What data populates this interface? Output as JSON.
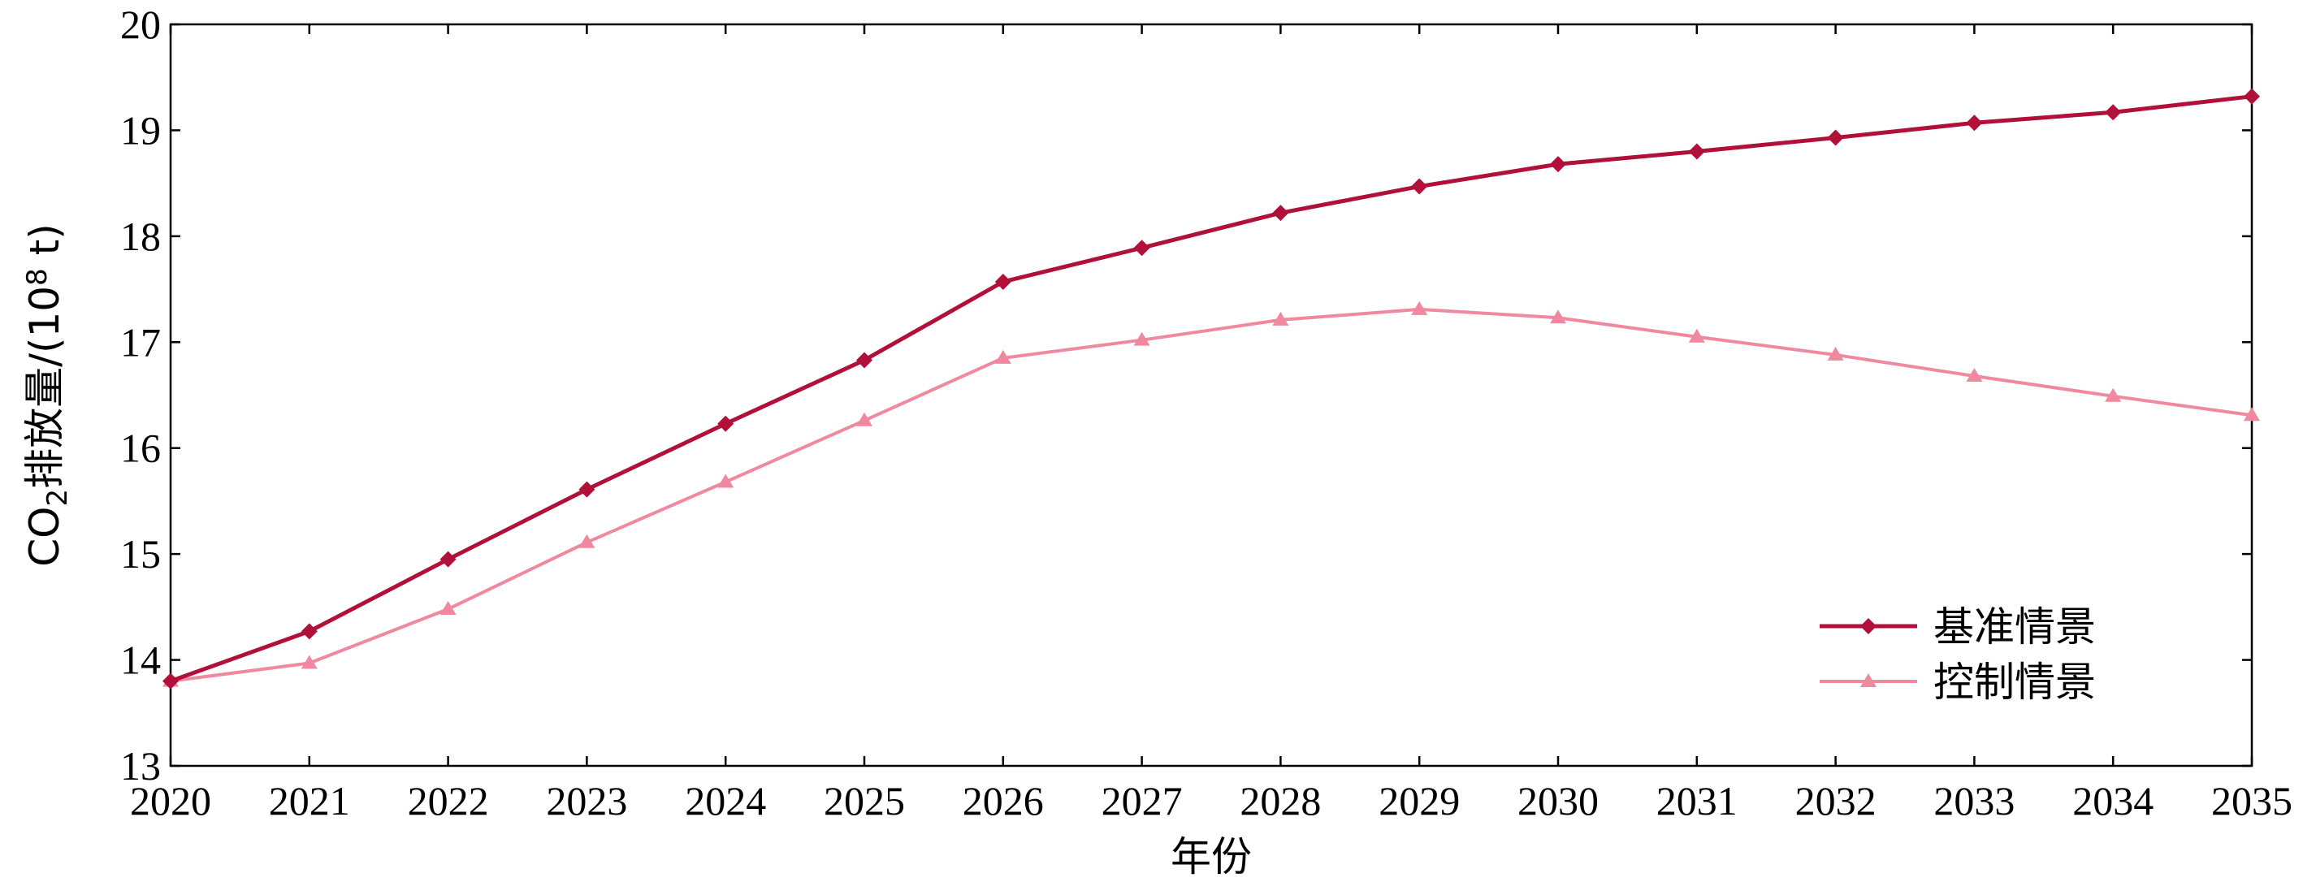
{
  "chart_data": {
    "type": "line",
    "xlabel": "年份",
    "ylabel": {
      "prefix": "CO",
      "subscript": "2",
      "middle": "排放量/(10",
      "superscript": "8",
      "suffix": " t)"
    },
    "ylim": [
      13,
      20
    ],
    "yticks": [
      "13",
      "14",
      "15",
      "16",
      "17",
      "18",
      "19",
      "20"
    ],
    "x": [
      "2020",
      "2021",
      "2022",
      "2023",
      "2024",
      "2025",
      "2026",
      "2027",
      "2028",
      "2029",
      "2030",
      "2031",
      "2032",
      "2033",
      "2034",
      "2035"
    ],
    "grid": false,
    "legend_position": "bottom-right",
    "series": [
      {
        "name": "基准情景",
        "marker": "diamond",
        "color": "#b0103a",
        "values": [
          13.8,
          14.27,
          14.95,
          15.61,
          16.23,
          16.83,
          17.57,
          17.89,
          18.22,
          18.47,
          18.68,
          18.8,
          18.93,
          19.07,
          19.17,
          19.32
        ]
      },
      {
        "name": "控制情景",
        "marker": "triangle",
        "color": "#f0899f",
        "values": [
          13.8,
          13.97,
          14.48,
          15.11,
          15.68,
          16.26,
          16.85,
          17.02,
          17.21,
          17.31,
          17.23,
          17.05,
          16.88,
          16.68,
          16.49,
          16.31
        ]
      }
    ]
  }
}
